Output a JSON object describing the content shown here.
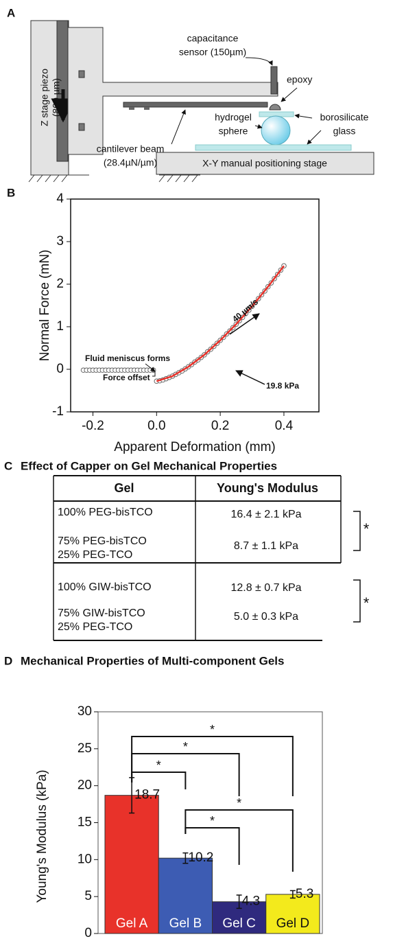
{
  "panel_labels": [
    "A",
    "B",
    "C",
    "D"
  ],
  "diagram": {
    "piezo": [
      "Z stage piezo",
      "(800 µm)"
    ],
    "sensor": [
      "capacitance",
      "sensor (150µm)"
    ],
    "epoxy": "epoxy",
    "sphere": [
      "hydrogel",
      "sphere"
    ],
    "glass": [
      "borosilicate",
      "glass"
    ],
    "beam": [
      "cantilever beam",
      "(28.4µN/µm)"
    ],
    "stage": "X-Y manual positioning stage"
  },
  "chart_data": [
    {
      "type": "scatter",
      "xlabel": "Apparent Deformation (mm)",
      "ylabel": "Normal Force (mN)",
      "xlim": [
        -0.27,
        0.51
      ],
      "ylim": [
        -1,
        4
      ],
      "xticks": [
        -0.2,
        {
          "value": 0,
          "label": "0.0"
        },
        0.2,
        0.4
      ],
      "yticks": [
        -1,
        0,
        1,
        2,
        3,
        4
      ],
      "annotations": {
        "meniscus": "Fluid meniscus forms",
        "offset": "Force offset",
        "rate": "40 µm/s",
        "modulus": "19.8 kPa"
      },
      "series": [
        {
          "marker": "open-circle",
          "color": "#666666",
          "x": [
            -0.23,
            -0.22,
            -0.21,
            -0.2,
            -0.19,
            -0.18,
            -0.17,
            -0.16,
            -0.15,
            -0.14,
            -0.13,
            -0.12,
            -0.11,
            -0.1,
            -0.09,
            -0.08,
            -0.07,
            -0.06,
            -0.05,
            -0.04,
            -0.03,
            -0.02,
            -0.01,
            0,
            0.01,
            0.02,
            0.03,
            0.04,
            0.05,
            0.06,
            0.07,
            0.08,
            0.09,
            0.1,
            0.11,
            0.12,
            0.13,
            0.14,
            0.15,
            0.16,
            0.17,
            0.18,
            0.19,
            0.2,
            0.21,
            0.22,
            0.23,
            0.24,
            0.25,
            0.26,
            0.27,
            0.28,
            0.29,
            0.3,
            0.31,
            0.32,
            0.33,
            0.34,
            0.35,
            0.36,
            0.37,
            0.38,
            0.39,
            0.4
          ],
          "values": [
            -0.02,
            -0.02,
            -0.02,
            -0.02,
            -0.02,
            -0.02,
            -0.02,
            -0.02,
            -0.02,
            -0.02,
            -0.02,
            -0.02,
            -0.02,
            -0.02,
            -0.02,
            -0.02,
            -0.02,
            -0.02,
            -0.02,
            -0.02,
            -0.02,
            -0.02,
            -0.02,
            -0.28,
            -0.27,
            -0.25,
            -0.22,
            -0.19,
            -0.16,
            -0.12,
            -0.08,
            -0.04,
            0.01,
            0.06,
            0.11,
            0.17,
            0.22,
            0.28,
            0.34,
            0.41,
            0.47,
            0.54,
            0.61,
            0.68,
            0.75,
            0.83,
            0.9,
            0.98,
            1.06,
            1.14,
            1.22,
            1.31,
            1.39,
            1.48,
            1.57,
            1.66,
            1.75,
            1.84,
            1.94,
            2.03,
            2.13,
            2.23,
            2.33,
            2.43
          ]
        },
        {
          "marker": "line",
          "color": "#e8322a",
          "x": [
            0,
            0.05,
            0.1,
            0.15,
            0.2,
            0.25,
            0.3,
            0.35,
            0.4
          ],
          "values": [
            -0.28,
            -0.16,
            0.06,
            0.34,
            0.68,
            1.06,
            1.48,
            1.94,
            2.43
          ]
        }
      ]
    },
    {
      "type": "bar",
      "title": "Mechanical Properties of Multi-component Gels",
      "ylabel": "Young's Modulus (kPa)",
      "categories": [
        "Gel A",
        "Gel B",
        "Gel C",
        "Gel D"
      ],
      "values": [
        18.7,
        10.2,
        4.3,
        5.3
      ],
      "errors": [
        2.4,
        0.7,
        0.9,
        0.5
      ],
      "colors": [
        "#e8322a",
        "#3d5cb3",
        "#2f2a7e",
        "#f3ea1c"
      ],
      "ylim": [
        0,
        30
      ],
      "yticks": [
        0,
        5,
        10,
        15,
        20,
        25,
        30
      ],
      "significance_labels": [
        "*",
        "*",
        "*",
        "*",
        "*"
      ]
    }
  ],
  "table": {
    "title": "Effect of Capper on Gel Mechanical Properties",
    "header": [
      "Gel",
      "Young's Modulus"
    ],
    "rows": [
      [
        [
          "100% PEG-bisTCO"
        ],
        "16.4 ± 2.1 kPa"
      ],
      [
        [
          "75% PEG-bisTCO",
          "25% PEG-TCO"
        ],
        "8.7 ± 1.1 kPa"
      ],
      [
        [
          "100% GIW-bisTCO"
        ],
        "12.8 ± 0.7 kPa"
      ],
      [
        [
          "75% GIW-bisTCO",
          "25% PEG-TCO"
        ],
        "5.0 ± 0.3 kPa"
      ]
    ],
    "significance": [
      "*",
      "*"
    ]
  }
}
